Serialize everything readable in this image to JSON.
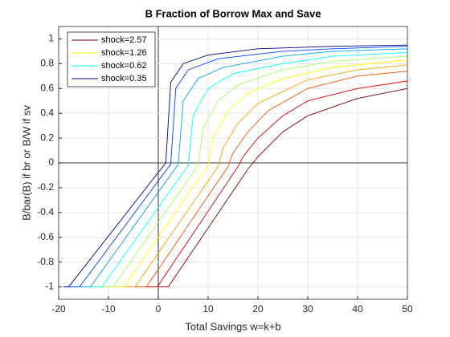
{
  "chart_data": {
    "type": "line",
    "title": "B Fraction of Borrow Max and Save",
    "xlabel": "Total Savings w=k+b",
    "ylabel": "B/bar(B) if br or B/W if sv",
    "xlim": [
      -20,
      50
    ],
    "xticks": [
      -20,
      -10,
      0,
      10,
      20,
      30,
      40,
      50
    ],
    "ylim": [
      -1.1,
      1.1
    ],
    "yticks": [
      -1,
      -0.8,
      -0.6,
      -0.4,
      -0.2,
      0,
      0.2,
      0.4,
      0.6,
      0.8,
      1
    ],
    "grid": true,
    "legend": "upper left",
    "series": [
      {
        "name": "shock=2.57",
        "color": "#800000",
        "x": [
          -19,
          2,
          18,
          20,
          25,
          30,
          40,
          50
        ],
        "values": [
          -1,
          -1,
          -0.05,
          0.05,
          0.25,
          0.38,
          0.52,
          0.6
        ]
      },
      {
        "color": "#e00000",
        "x": [
          -19,
          -0.2,
          16,
          17,
          20,
          25,
          30,
          40,
          50
        ],
        "values": [
          -1,
          -1,
          -0.03,
          0.05,
          0.2,
          0.38,
          0.5,
          0.6,
          0.66
        ]
      },
      {
        "color": "#ff5000",
        "x": [
          -19,
          -2.4,
          14,
          15,
          18,
          22,
          30,
          40,
          50
        ],
        "values": [
          -1,
          -1,
          -0.03,
          0.08,
          0.25,
          0.42,
          0.6,
          0.7,
          0.74
        ]
      },
      {
        "color": "#ffa000",
        "x": [
          -19,
          -4.7,
          12,
          13,
          16,
          20,
          30,
          40,
          50
        ],
        "values": [
          -1,
          -1,
          -0.03,
          0.12,
          0.32,
          0.48,
          0.67,
          0.75,
          0.79
        ]
      },
      {
        "name": "shock=1.26",
        "color": "#ffff00",
        "x": [
          -19,
          -6.9,
          10,
          11,
          14,
          18,
          25,
          35,
          50
        ],
        "values": [
          -1,
          -1,
          -0.02,
          0.2,
          0.42,
          0.56,
          0.68,
          0.77,
          0.83
        ]
      },
      {
        "color": "#a0ff60",
        "x": [
          -19,
          -9.1,
          8,
          9,
          12,
          16,
          25,
          35,
          50
        ],
        "values": [
          -1,
          -1,
          -0.02,
          0.28,
          0.5,
          0.63,
          0.75,
          0.82,
          0.86
        ]
      },
      {
        "name": "shock=0.62",
        "color": "#00ffff",
        "x": [
          -19,
          -11.3,
          6,
          7,
          10,
          15,
          25,
          35,
          50
        ],
        "values": [
          -1,
          -1,
          -0.02,
          0.38,
          0.6,
          0.72,
          0.8,
          0.86,
          0.89
        ]
      },
      {
        "color": "#00a0ff",
        "x": [
          -19,
          -13.6,
          4,
          5,
          8,
          13,
          25,
          35,
          50
        ],
        "values": [
          -1,
          -1,
          -0.01,
          0.5,
          0.68,
          0.77,
          0.86,
          0.9,
          0.92
        ]
      },
      {
        "color": "#0040ff",
        "x": [
          -19,
          -15.8,
          2.5,
          3.5,
          6,
          12,
          25,
          35,
          50
        ],
        "values": [
          -1,
          -1,
          -0.01,
          0.6,
          0.75,
          0.84,
          0.9,
          0.92,
          0.94
        ]
      },
      {
        "name": "shock=0.35",
        "color": "#000080",
        "x": [
          -19,
          -18,
          1.5,
          2.5,
          5,
          10,
          20,
          35,
          50
        ],
        "values": [
          -1,
          -1,
          0,
          0.65,
          0.8,
          0.87,
          0.92,
          0.94,
          0.95
        ]
      }
    ]
  }
}
